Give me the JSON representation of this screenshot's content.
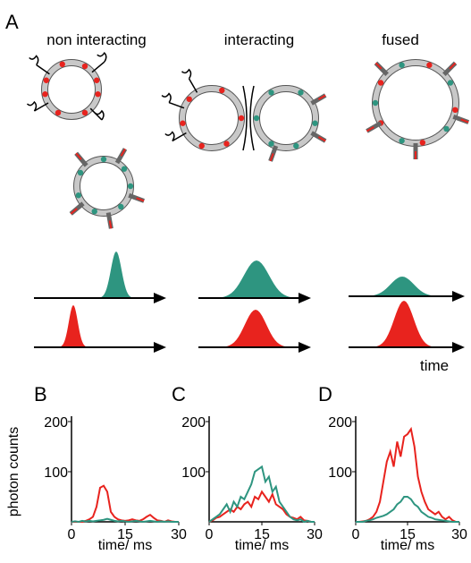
{
  "panel_a": {
    "label": "A",
    "columns": [
      "non interacting",
      "interacting",
      "fused"
    ],
    "time_label": "time"
  },
  "chart_data": [
    {
      "type": "line",
      "panel_label": "B",
      "ylabel": "photon counts",
      "xlabel": "time/ ms",
      "x": [
        0,
        1,
        2,
        3,
        4,
        5,
        6,
        7,
        8,
        9,
        10,
        11,
        12,
        13,
        14,
        15,
        16,
        17,
        18,
        19,
        20,
        21,
        22,
        23,
        24,
        25,
        26,
        27,
        28,
        29,
        30
      ],
      "series": [
        {
          "color": "#e8231e",
          "values": [
            0,
            0,
            0,
            0,
            2,
            5,
            10,
            30,
            68,
            72,
            60,
            20,
            10,
            5,
            3,
            2,
            3,
            5,
            3,
            2,
            5,
            10,
            14,
            8,
            3,
            2,
            0,
            3,
            1,
            0,
            0
          ]
        },
        {
          "color": "#2e9580",
          "values": [
            0,
            1,
            0,
            2,
            1,
            2,
            1,
            2,
            3,
            4,
            6,
            4,
            2,
            1,
            2,
            1,
            0,
            1,
            2,
            1,
            0,
            1,
            2,
            1,
            0,
            1,
            0,
            1,
            0,
            0,
            0
          ]
        }
      ],
      "xlim": [
        0,
        30
      ],
      "ylim": [
        0,
        200
      ],
      "xticks": [
        0,
        15,
        30
      ],
      "yticks": [
        100,
        200
      ]
    },
    {
      "type": "line",
      "panel_label": "C",
      "xlabel": "time/ ms",
      "x": [
        0,
        1,
        2,
        3,
        4,
        5,
        6,
        7,
        8,
        9,
        10,
        11,
        12,
        13,
        14,
        15,
        16,
        17,
        18,
        19,
        20,
        21,
        22,
        23,
        24,
        25,
        26,
        27,
        28,
        29,
        30
      ],
      "series": [
        {
          "color": "#e8231e",
          "values": [
            0,
            3,
            8,
            10,
            15,
            20,
            25,
            20,
            30,
            25,
            35,
            40,
            30,
            50,
            45,
            60,
            50,
            40,
            55,
            35,
            30,
            25,
            15,
            10,
            8,
            5,
            10,
            3,
            2,
            0,
            0
          ]
        },
        {
          "color": "#2e9580",
          "values": [
            0,
            5,
            10,
            15,
            25,
            35,
            20,
            40,
            30,
            50,
            45,
            60,
            75,
            100,
            105,
            110,
            80,
            90,
            60,
            70,
            40,
            30,
            20,
            10,
            5,
            3,
            5,
            0,
            2,
            0,
            0
          ]
        }
      ],
      "xlim": [
        0,
        30
      ],
      "ylim": [
        0,
        200
      ],
      "xticks": [
        0,
        15,
        30
      ],
      "yticks": [
        100,
        200
      ]
    },
    {
      "type": "line",
      "panel_label": "D",
      "xlabel": "time/ ms",
      "x": [
        0,
        1,
        2,
        3,
        4,
        5,
        6,
        7,
        8,
        9,
        10,
        11,
        12,
        13,
        14,
        15,
        16,
        17,
        18,
        19,
        20,
        21,
        22,
        23,
        24,
        25,
        26,
        27,
        28,
        29,
        30
      ],
      "series": [
        {
          "color": "#e8231e",
          "values": [
            0,
            0,
            1,
            2,
            5,
            10,
            20,
            40,
            80,
            120,
            140,
            110,
            160,
            130,
            170,
            175,
            185,
            150,
            90,
            60,
            40,
            25,
            20,
            15,
            20,
            10,
            5,
            10,
            3,
            0,
            0
          ]
        },
        {
          "color": "#2e9580",
          "values": [
            0,
            0,
            0,
            2,
            3,
            5,
            8,
            10,
            12,
            15,
            20,
            25,
            35,
            40,
            50,
            50,
            45,
            35,
            30,
            20,
            15,
            10,
            8,
            5,
            4,
            3,
            2,
            1,
            0,
            0,
            0
          ]
        }
      ],
      "xlim": [
        0,
        30
      ],
      "ylim": [
        0,
        200
      ],
      "xticks": [
        0,
        15,
        30
      ],
      "yticks": [
        100,
        200
      ]
    }
  ]
}
